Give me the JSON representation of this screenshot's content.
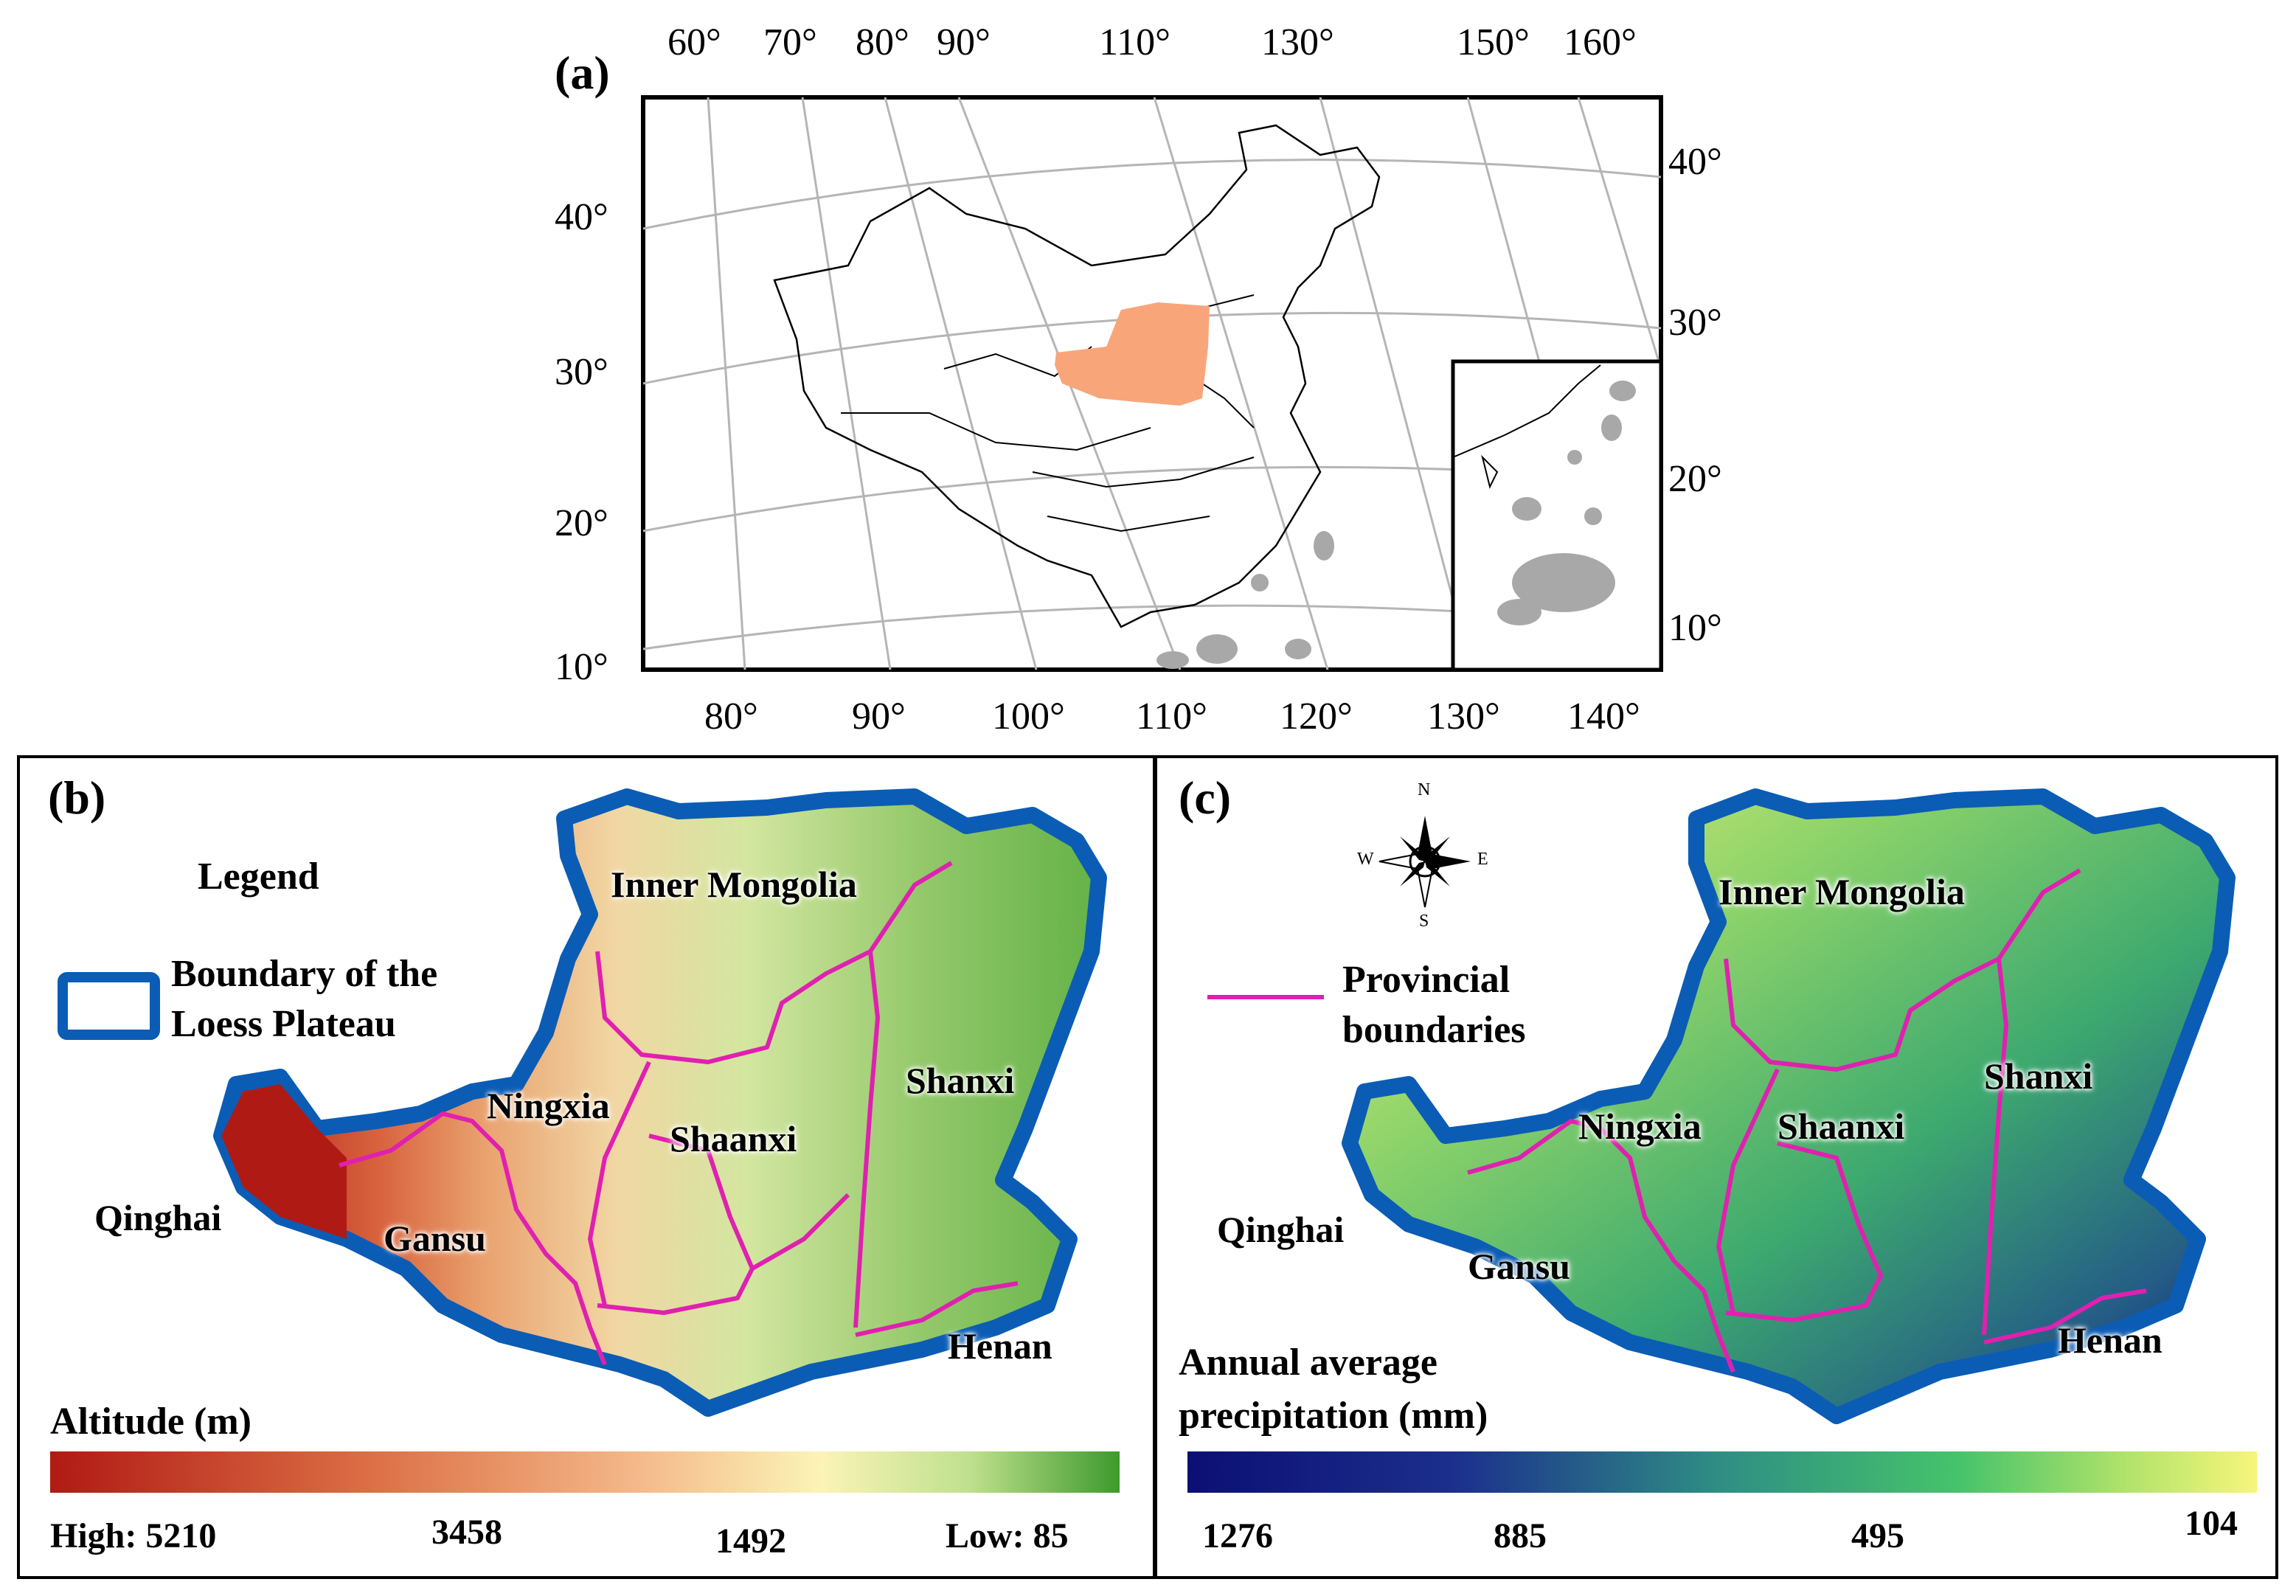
{
  "panel_a": {
    "label": "(a)",
    "top_ticks": [
      "60°",
      "70°",
      "80°",
      "90°",
      "110°",
      "130°",
      "150°",
      "160°"
    ],
    "bottom_ticks": [
      "80°",
      "90°",
      "100°",
      "110°",
      "120°",
      "130°",
      "140°"
    ],
    "left_ticks": [
      "40°",
      "30°",
      "20°",
      "10°"
    ],
    "right_ticks": [
      "40°",
      "30°",
      "20°",
      "10°"
    ],
    "colors": {
      "loess_plateau": "#f9a57a",
      "islands": "#a8a8a8",
      "graticule": "#b5b5b5"
    }
  },
  "panel_b": {
    "label": "(b)",
    "legend_title": "Legend",
    "legend_item_line1": "Boundary of the",
    "legend_item_line2": "Loess Plateau",
    "provinces": {
      "inner_mongolia": "Inner Mongolia",
      "ningxia": "Ningxia",
      "shaanxi": "Shaanxi",
      "shanxi": "Shanxi",
      "qinghai": "Qinghai",
      "gansu": "Gansu",
      "henan": "Henan"
    },
    "colorbar_title": "Altitude (m)",
    "colorbar_labels": [
      "High: 5210",
      "3458",
      "1492",
      "Low: 85"
    ],
    "colors": {
      "boundary": "#0b5cb5",
      "provincial": "#e020b0"
    }
  },
  "panel_c": {
    "label": "(c)",
    "compass": {
      "n": "N",
      "s": "S",
      "e": "E",
      "w": "W"
    },
    "legend_item_line1": "Provincial",
    "legend_item_line2": "boundaries",
    "provinces": {
      "inner_mongolia": "Inner Mongolia",
      "ningxia": "Ningxia",
      "shaanxi": "Shaanxi",
      "shanxi": "Shanxi",
      "qinghai": "Qinghai",
      "gansu": "Gansu",
      "henan": "Henan"
    },
    "colorbar_title_line1": "Annual average",
    "colorbar_title_line2": "precipitation (mm)",
    "colorbar_labels": [
      "1276",
      "885",
      "495",
      "104"
    ],
    "colors": {
      "boundary": "#0b5cb5",
      "provincial": "#e020b0"
    }
  }
}
